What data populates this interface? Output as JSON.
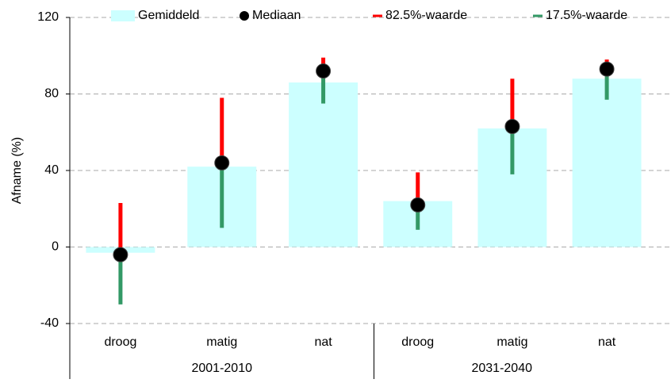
{
  "chart_data": {
    "type": "bar",
    "ylabel": "Afname (%)",
    "categories": [
      "droog",
      "matig",
      "nat",
      "droog",
      "matig",
      "nat"
    ],
    "groups": [
      "2001-2010",
      "2031-2040"
    ],
    "ylim": [
      -40,
      120
    ],
    "yticks": [
      -40,
      0,
      40,
      80,
      120
    ],
    "grid": true,
    "legend": "top",
    "series": [
      {
        "name": "Gemiddeld",
        "color": "#ccffff",
        "marker": "bar",
        "values": [
          -3,
          42,
          86,
          24,
          62,
          88
        ]
      },
      {
        "name": "Mediaan",
        "color": "#000000",
        "marker": "dot",
        "values": [
          -4,
          44,
          92,
          22,
          63,
          93
        ]
      },
      {
        "name": "82.5%-waarde",
        "color": "#ff0000",
        "marker": "line-up",
        "values": [
          23,
          78,
          99,
          39,
          88,
          98
        ]
      },
      {
        "name": "17.5%-waarde",
        "color": "#339966",
        "marker": "line-down",
        "values": [
          -30,
          10,
          75,
          9,
          38,
          77
        ]
      }
    ]
  }
}
